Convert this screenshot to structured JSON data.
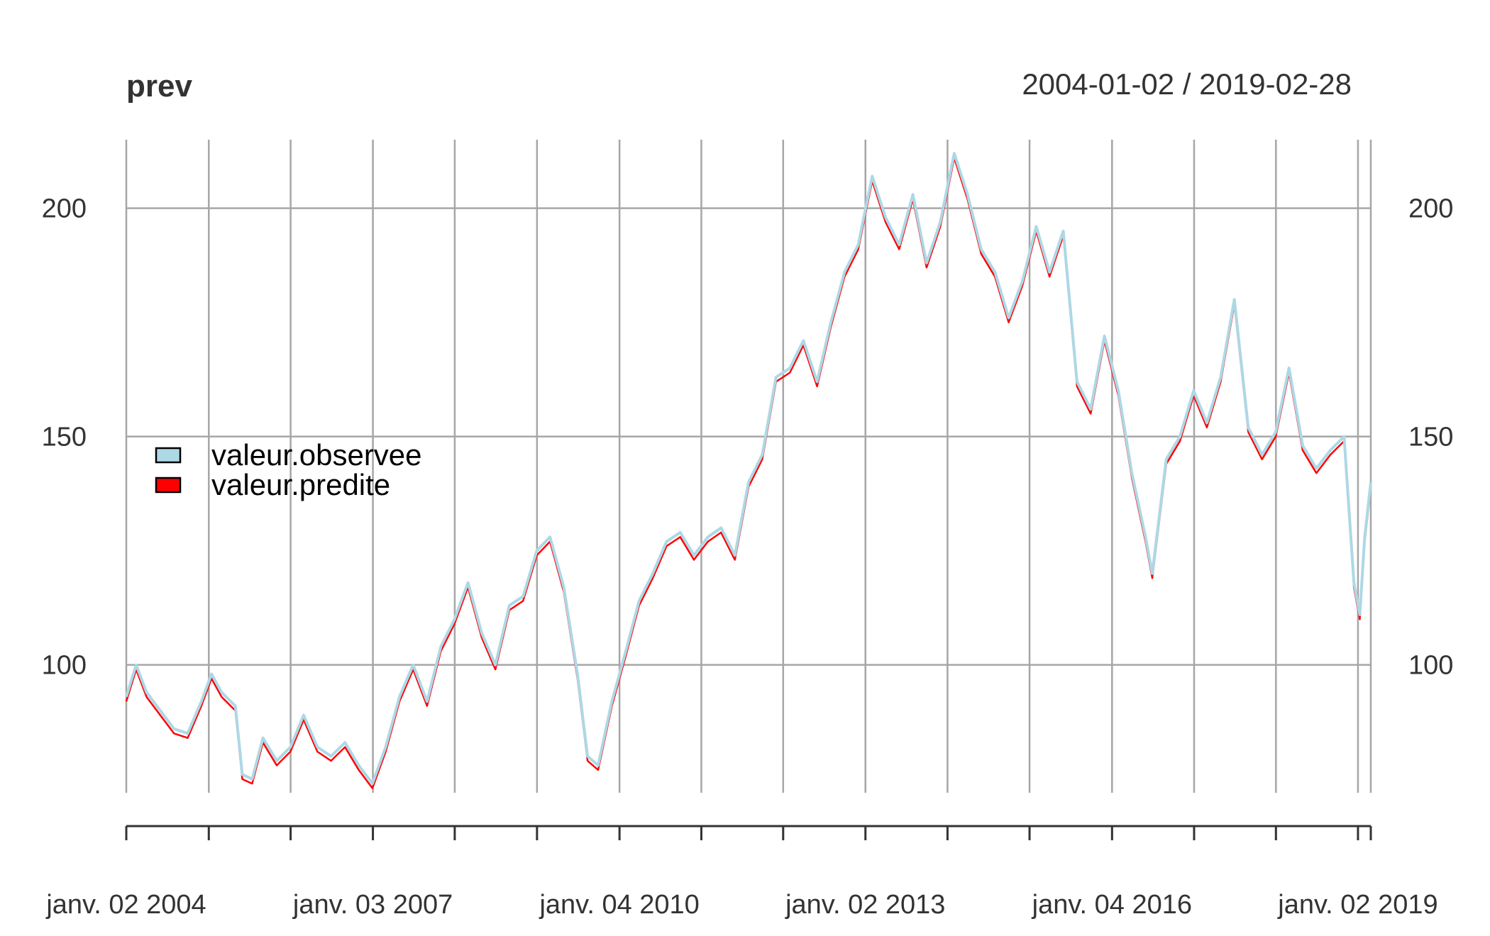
{
  "chart_data": {
    "type": "line",
    "title": "prev",
    "subtitle": "2004-01-02 / 2019-02-28",
    "xlim": [
      "2004-01-02",
      "2019-02-28"
    ],
    "ylim": [
      72,
      215
    ],
    "yticks": [
      100,
      150,
      200
    ],
    "xtick_labels": [
      {
        "date": "2004-01-02",
        "label": "janv. 02 2004"
      },
      {
        "date": "2007-01-03",
        "label": "janv. 03 2007"
      },
      {
        "date": "2010-01-04",
        "label": "janv. 04 2010"
      },
      {
        "date": "2013-01-02",
        "label": "janv. 02 2013"
      },
      {
        "date": "2016-01-04",
        "label": "janv. 04 2016"
      },
      {
        "date": "2019-01-02",
        "label": "janv. 02 2019"
      }
    ],
    "x_gridlines": [
      "2004-01-02",
      "2005-01-03",
      "2006-01-02",
      "2007-01-03",
      "2008-01-02",
      "2009-01-02",
      "2010-01-04",
      "2011-01-03",
      "2012-01-02",
      "2013-01-02",
      "2014-01-02",
      "2015-01-02",
      "2016-01-04",
      "2017-01-03",
      "2018-01-02",
      "2019-01-02",
      "2019-02-28"
    ],
    "grid": true,
    "legend": {
      "position": "left",
      "entries": [
        {
          "label": "valeur.observee",
          "color": "#ADD8E6"
        },
        {
          "label": "valeur.predite",
          "color": "#FF0000"
        }
      ]
    },
    "series": [
      {
        "name": "valeur.observee",
        "color": "#ADD8E6",
        "points": [
          [
            "2004-01-02",
            93
          ],
          [
            "2004-02-15",
            100
          ],
          [
            "2004-04-01",
            94
          ],
          [
            "2004-06-01",
            90
          ],
          [
            "2004-08-01",
            86
          ],
          [
            "2004-10-01",
            85
          ],
          [
            "2004-12-01",
            92
          ],
          [
            "2005-01-15",
            98
          ],
          [
            "2005-03-01",
            94
          ],
          [
            "2005-05-01",
            91
          ],
          [
            "2005-06-01",
            76
          ],
          [
            "2005-07-15",
            75
          ],
          [
            "2005-09-01",
            84
          ],
          [
            "2005-11-01",
            79
          ],
          [
            "2006-01-01",
            82
          ],
          [
            "2006-03-01",
            89
          ],
          [
            "2006-05-01",
            82
          ],
          [
            "2006-07-01",
            80
          ],
          [
            "2006-09-01",
            83
          ],
          [
            "2006-11-01",
            78
          ],
          [
            "2007-01-01",
            74
          ],
          [
            "2007-03-01",
            82
          ],
          [
            "2007-05-01",
            93
          ],
          [
            "2007-07-01",
            100
          ],
          [
            "2007-09-01",
            92
          ],
          [
            "2007-11-01",
            104
          ],
          [
            "2008-01-01",
            110
          ],
          [
            "2008-03-01",
            118
          ],
          [
            "2008-05-01",
            107
          ],
          [
            "2008-07-01",
            100
          ],
          [
            "2008-09-01",
            113
          ],
          [
            "2008-11-01",
            115
          ],
          [
            "2009-01-01",
            125
          ],
          [
            "2009-03-01",
            128
          ],
          [
            "2009-05-01",
            117
          ],
          [
            "2009-07-01",
            98
          ],
          [
            "2009-08-15",
            80
          ],
          [
            "2009-10-01",
            78
          ],
          [
            "2009-12-01",
            92
          ],
          [
            "2010-02-01",
            103
          ],
          [
            "2010-04-01",
            114
          ],
          [
            "2010-06-01",
            120
          ],
          [
            "2010-08-01",
            127
          ],
          [
            "2010-10-01",
            129
          ],
          [
            "2010-12-01",
            124
          ],
          [
            "2011-02-01",
            128
          ],
          [
            "2011-04-01",
            130
          ],
          [
            "2011-06-01",
            124
          ],
          [
            "2011-08-01",
            140
          ],
          [
            "2011-10-01",
            146
          ],
          [
            "2011-12-01",
            163
          ],
          [
            "2012-02-01",
            165
          ],
          [
            "2012-04-01",
            171
          ],
          [
            "2012-06-01",
            162
          ],
          [
            "2012-08-01",
            175
          ],
          [
            "2012-10-01",
            186
          ],
          [
            "2012-12-01",
            192
          ],
          [
            "2013-02-01",
            207
          ],
          [
            "2013-04-01",
            198
          ],
          [
            "2013-06-01",
            192
          ],
          [
            "2013-08-01",
            203
          ],
          [
            "2013-10-01",
            188
          ],
          [
            "2013-12-01",
            197
          ],
          [
            "2014-02-01",
            212
          ],
          [
            "2014-04-01",
            203
          ],
          [
            "2014-06-01",
            191
          ],
          [
            "2014-08-01",
            186
          ],
          [
            "2014-10-01",
            176
          ],
          [
            "2014-12-01",
            184
          ],
          [
            "2015-02-01",
            196
          ],
          [
            "2015-04-01",
            186
          ],
          [
            "2015-06-01",
            195
          ],
          [
            "2015-08-01",
            162
          ],
          [
            "2015-10-01",
            156
          ],
          [
            "2015-12-01",
            172
          ],
          [
            "2016-02-01",
            160
          ],
          [
            "2016-04-01",
            142
          ],
          [
            "2016-06-01",
            128
          ],
          [
            "2016-07-01",
            120
          ],
          [
            "2016-09-01",
            145
          ],
          [
            "2016-11-01",
            150
          ],
          [
            "2017-01-01",
            160
          ],
          [
            "2017-03-01",
            153
          ],
          [
            "2017-05-01",
            163
          ],
          [
            "2017-07-01",
            180
          ],
          [
            "2017-09-01",
            152
          ],
          [
            "2017-11-01",
            146
          ],
          [
            "2018-01-01",
            151
          ],
          [
            "2018-03-01",
            165
          ],
          [
            "2018-05-01",
            148
          ],
          [
            "2018-07-01",
            143
          ],
          [
            "2018-09-01",
            147
          ],
          [
            "2018-11-01",
            150
          ],
          [
            "2018-12-15",
            118
          ],
          [
            "2019-01-10",
            111
          ],
          [
            "2019-02-01",
            128
          ],
          [
            "2019-02-28",
            140
          ]
        ]
      },
      {
        "name": "valeur.predite",
        "color": "#FF0000",
        "points": [
          [
            "2004-01-02",
            92
          ],
          [
            "2004-02-15",
            99
          ],
          [
            "2004-04-01",
            93
          ],
          [
            "2004-06-01",
            89
          ],
          [
            "2004-08-01",
            85
          ],
          [
            "2004-10-01",
            84
          ],
          [
            "2004-12-01",
            91
          ],
          [
            "2005-01-15",
            97
          ],
          [
            "2005-03-01",
            93
          ],
          [
            "2005-05-01",
            90
          ],
          [
            "2005-06-01",
            75
          ],
          [
            "2005-07-15",
            74
          ],
          [
            "2005-09-01",
            83
          ],
          [
            "2005-11-01",
            78
          ],
          [
            "2006-01-01",
            81
          ],
          [
            "2006-03-01",
            88
          ],
          [
            "2006-05-01",
            81
          ],
          [
            "2006-07-01",
            79
          ],
          [
            "2006-09-01",
            82
          ],
          [
            "2006-11-01",
            77
          ],
          [
            "2007-01-01",
            73
          ],
          [
            "2007-03-01",
            81
          ],
          [
            "2007-05-01",
            92
          ],
          [
            "2007-07-01",
            99
          ],
          [
            "2007-09-01",
            91
          ],
          [
            "2007-11-01",
            103
          ],
          [
            "2008-01-01",
            109
          ],
          [
            "2008-03-01",
            117
          ],
          [
            "2008-05-01",
            106
          ],
          [
            "2008-07-01",
            99
          ],
          [
            "2008-09-01",
            112
          ],
          [
            "2008-11-01",
            114
          ],
          [
            "2009-01-01",
            124
          ],
          [
            "2009-03-01",
            127
          ],
          [
            "2009-05-01",
            116
          ],
          [
            "2009-07-01",
            97
          ],
          [
            "2009-08-15",
            79
          ],
          [
            "2009-10-01",
            77
          ],
          [
            "2009-12-01",
            91
          ],
          [
            "2010-02-01",
            102
          ],
          [
            "2010-04-01",
            113
          ],
          [
            "2010-06-01",
            119
          ],
          [
            "2010-08-01",
            126
          ],
          [
            "2010-10-01",
            128
          ],
          [
            "2010-12-01",
            123
          ],
          [
            "2011-02-01",
            127
          ],
          [
            "2011-04-01",
            129
          ],
          [
            "2011-06-01",
            123
          ],
          [
            "2011-08-01",
            139
          ],
          [
            "2011-10-01",
            145
          ],
          [
            "2011-12-01",
            162
          ],
          [
            "2012-02-01",
            164
          ],
          [
            "2012-04-01",
            170
          ],
          [
            "2012-06-01",
            161
          ],
          [
            "2012-08-01",
            174
          ],
          [
            "2012-10-01",
            185
          ],
          [
            "2012-12-01",
            191
          ],
          [
            "2013-02-01",
            206
          ],
          [
            "2013-04-01",
            197
          ],
          [
            "2013-06-01",
            191
          ],
          [
            "2013-08-01",
            202
          ],
          [
            "2013-10-01",
            187
          ],
          [
            "2013-12-01",
            196
          ],
          [
            "2014-02-01",
            211
          ],
          [
            "2014-04-01",
            202
          ],
          [
            "2014-06-01",
            190
          ],
          [
            "2014-08-01",
            185
          ],
          [
            "2014-10-01",
            175
          ],
          [
            "2014-12-01",
            183
          ],
          [
            "2015-02-01",
            195
          ],
          [
            "2015-04-01",
            185
          ],
          [
            "2015-06-01",
            194
          ],
          [
            "2015-08-01",
            161
          ],
          [
            "2015-10-01",
            155
          ],
          [
            "2015-12-01",
            171
          ],
          [
            "2016-02-01",
            159
          ],
          [
            "2016-04-01",
            141
          ],
          [
            "2016-06-01",
            127
          ],
          [
            "2016-07-01",
            119
          ],
          [
            "2016-09-01",
            144
          ],
          [
            "2016-11-01",
            149
          ],
          [
            "2017-01-01",
            159
          ],
          [
            "2017-03-01",
            152
          ],
          [
            "2017-05-01",
            162
          ],
          [
            "2017-07-01",
            179
          ],
          [
            "2017-09-01",
            151
          ],
          [
            "2017-11-01",
            145
          ],
          [
            "2018-01-01",
            150
          ],
          [
            "2018-03-01",
            164
          ],
          [
            "2018-05-01",
            147
          ],
          [
            "2018-07-01",
            142
          ],
          [
            "2018-09-01",
            146
          ],
          [
            "2018-11-01",
            149
          ],
          [
            "2018-12-15",
            117
          ],
          [
            "2019-01-10",
            110
          ],
          [
            "2019-02-01",
            127
          ],
          [
            "2019-02-28",
            139
          ]
        ]
      }
    ]
  }
}
